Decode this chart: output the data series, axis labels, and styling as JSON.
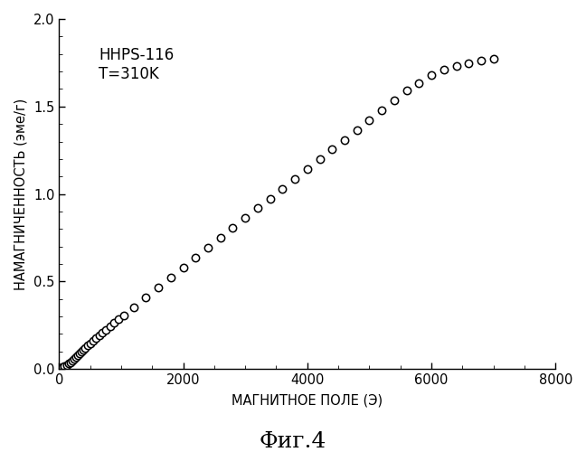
{
  "title": "Фиг.4",
  "xlabel": "МАГНИТНОЕ ПОЛЕ (Э)",
  "ylabel": "НАМАГНИЧЕННОСТЬ (эме/г)",
  "annotation_line1": "HHPS-116",
  "annotation_line2": "T=310K",
  "xlim": [
    0,
    8000
  ],
  "ylim": [
    0.0,
    2.0
  ],
  "xticks": [
    0,
    2000,
    4000,
    6000,
    8000
  ],
  "yticks": [
    0.0,
    0.5,
    1.0,
    1.5,
    2.0
  ],
  "marker": "o",
  "marker_facecolor": "white",
  "marker_edgecolor": "#000000",
  "marker_size": 6,
  "marker_linewidth": 1.1,
  "background_color": "#ffffff",
  "x_data": [
    30,
    60,
    90,
    120,
    150,
    180,
    210,
    240,
    270,
    300,
    330,
    360,
    390,
    420,
    460,
    500,
    550,
    600,
    650,
    700,
    760,
    820,
    890,
    960,
    1050,
    1200,
    1400,
    1600,
    1800,
    2000,
    2200,
    2400,
    2600,
    2800,
    3000,
    3200,
    3400,
    3600,
    3800,
    4000,
    4200,
    4400,
    4600,
    4800,
    5000,
    5200,
    5400,
    5600,
    5800,
    6000,
    6200,
    6400,
    6600,
    6800,
    7000
  ],
  "y_data": [
    0.005,
    0.01,
    0.015,
    0.022,
    0.03,
    0.038,
    0.048,
    0.058,
    0.068,
    0.078,
    0.09,
    0.1,
    0.112,
    0.122,
    0.135,
    0.148,
    0.163,
    0.178,
    0.192,
    0.207,
    0.224,
    0.242,
    0.263,
    0.283,
    0.308,
    0.352,
    0.41,
    0.468,
    0.525,
    0.582,
    0.638,
    0.694,
    0.75,
    0.806,
    0.862,
    0.918,
    0.974,
    1.03,
    1.086,
    1.142,
    1.198,
    1.254,
    1.31,
    1.366,
    1.422,
    1.478,
    1.534,
    1.59,
    1.635,
    1.678,
    1.71,
    1.73,
    1.748,
    1.762,
    1.775
  ]
}
